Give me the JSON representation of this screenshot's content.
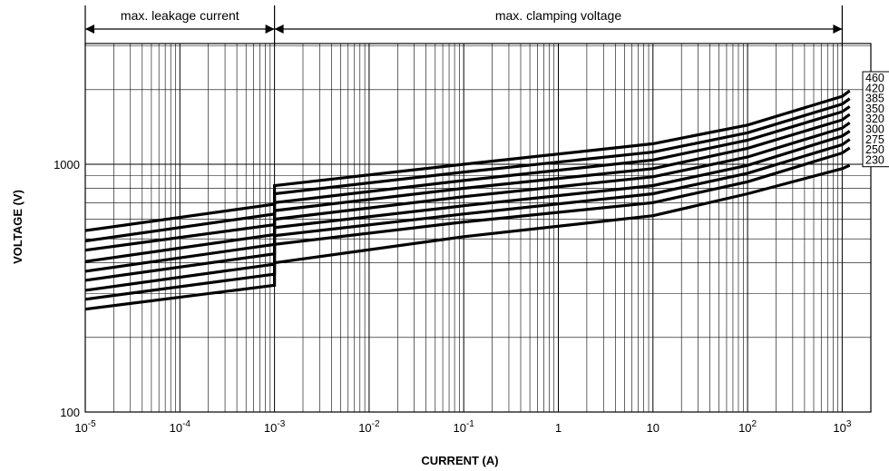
{
  "chart_data": {
    "type": "line",
    "xlabel": "CURRENT (A)",
    "ylabel": "VOLTAGE (V)",
    "x_scale": "log",
    "y_scale": "log",
    "xlim": [
      1e-05,
      1000
    ],
    "ylim": [
      100,
      3000
    ],
    "grid": true,
    "x_tick_labels": [
      {
        "value": 1e-05,
        "base": "10",
        "exp": "-5"
      },
      {
        "value": 0.0001,
        "base": "10",
        "exp": "-4"
      },
      {
        "value": 0.001,
        "base": "10",
        "exp": "-3"
      },
      {
        "value": 0.01,
        "base": "10",
        "exp": "-2"
      },
      {
        "value": 0.1,
        "base": "10",
        "exp": "-1"
      },
      {
        "value": 1,
        "base": "1",
        "exp": ""
      },
      {
        "value": 10,
        "base": "10",
        "exp": ""
      },
      {
        "value": 100,
        "base": "10",
        "exp": "2"
      },
      {
        "value": 1000,
        "base": "10",
        "exp": "3"
      }
    ],
    "y_tick_labels": [
      {
        "value": 100,
        "label": "100"
      },
      {
        "value": 1000,
        "label": "1000"
      }
    ],
    "annotations": [
      {
        "text": "max. leakage current",
        "x_from": 1e-05,
        "x_to": 0.001
      },
      {
        "text": "max. clamping voltage",
        "x_from": 0.001,
        "x_to": 1000
      }
    ],
    "series": [
      {
        "name": "460",
        "points": [
          [
            1e-05,
            540
          ],
          [
            0.001,
            690
          ],
          [
            0.001,
            820
          ],
          [
            0.1,
            1000
          ],
          [
            10,
            1210
          ],
          [
            100,
            1440
          ],
          [
            1000,
            1880
          ],
          [
            1200,
            1980
          ]
        ]
      },
      {
        "name": "420",
        "points": [
          [
            1e-05,
            490
          ],
          [
            0.001,
            630
          ],
          [
            0.001,
            760
          ],
          [
            0.1,
            930
          ],
          [
            10,
            1120
          ],
          [
            100,
            1340
          ],
          [
            1000,
            1750
          ],
          [
            1200,
            1840
          ]
        ]
      },
      {
        "name": "385",
        "points": [
          [
            1e-05,
            450
          ],
          [
            0.001,
            570
          ],
          [
            0.001,
            700
          ],
          [
            0.1,
            860
          ],
          [
            10,
            1040
          ],
          [
            100,
            1250
          ],
          [
            1000,
            1630
          ],
          [
            1200,
            1710
          ]
        ]
      },
      {
        "name": "350",
        "points": [
          [
            1e-05,
            405
          ],
          [
            0.001,
            520
          ],
          [
            0.001,
            650
          ],
          [
            0.1,
            800
          ],
          [
            10,
            960
          ],
          [
            100,
            1160
          ],
          [
            1000,
            1510
          ],
          [
            1200,
            1590
          ]
        ]
      },
      {
        "name": "320",
        "points": [
          [
            1e-05,
            370
          ],
          [
            0.001,
            475
          ],
          [
            0.001,
            600
          ],
          [
            0.1,
            740
          ],
          [
            10,
            890
          ],
          [
            100,
            1070
          ],
          [
            1000,
            1400
          ],
          [
            1200,
            1470
          ]
        ]
      },
      {
        "name": "300",
        "points": [
          [
            1e-05,
            340
          ],
          [
            0.001,
            435
          ],
          [
            0.001,
            555
          ],
          [
            0.1,
            680
          ],
          [
            10,
            820
          ],
          [
            100,
            990
          ],
          [
            1000,
            1300
          ],
          [
            1200,
            1360
          ]
        ]
      },
      {
        "name": "275",
        "points": [
          [
            1e-05,
            310
          ],
          [
            0.001,
            395
          ],
          [
            0.001,
            515
          ],
          [
            0.1,
            630
          ],
          [
            10,
            760
          ],
          [
            100,
            920
          ],
          [
            1000,
            1200
          ],
          [
            1200,
            1260
          ]
        ]
      },
      {
        "name": "250",
        "points": [
          [
            1e-05,
            285
          ],
          [
            0.001,
            360
          ],
          [
            0.001,
            475
          ],
          [
            0.1,
            585
          ],
          [
            10,
            700
          ],
          [
            100,
            850
          ],
          [
            1000,
            1110
          ],
          [
            1200,
            1165
          ]
        ]
      },
      {
        "name": "230",
        "points": [
          [
            1e-05,
            260
          ],
          [
            0.001,
            325
          ],
          [
            0.001,
            400
          ],
          [
            0.1,
            510
          ],
          [
            10,
            620
          ],
          [
            100,
            760
          ],
          [
            1000,
            960
          ],
          [
            1200,
            990
          ]
        ]
      }
    ]
  }
}
